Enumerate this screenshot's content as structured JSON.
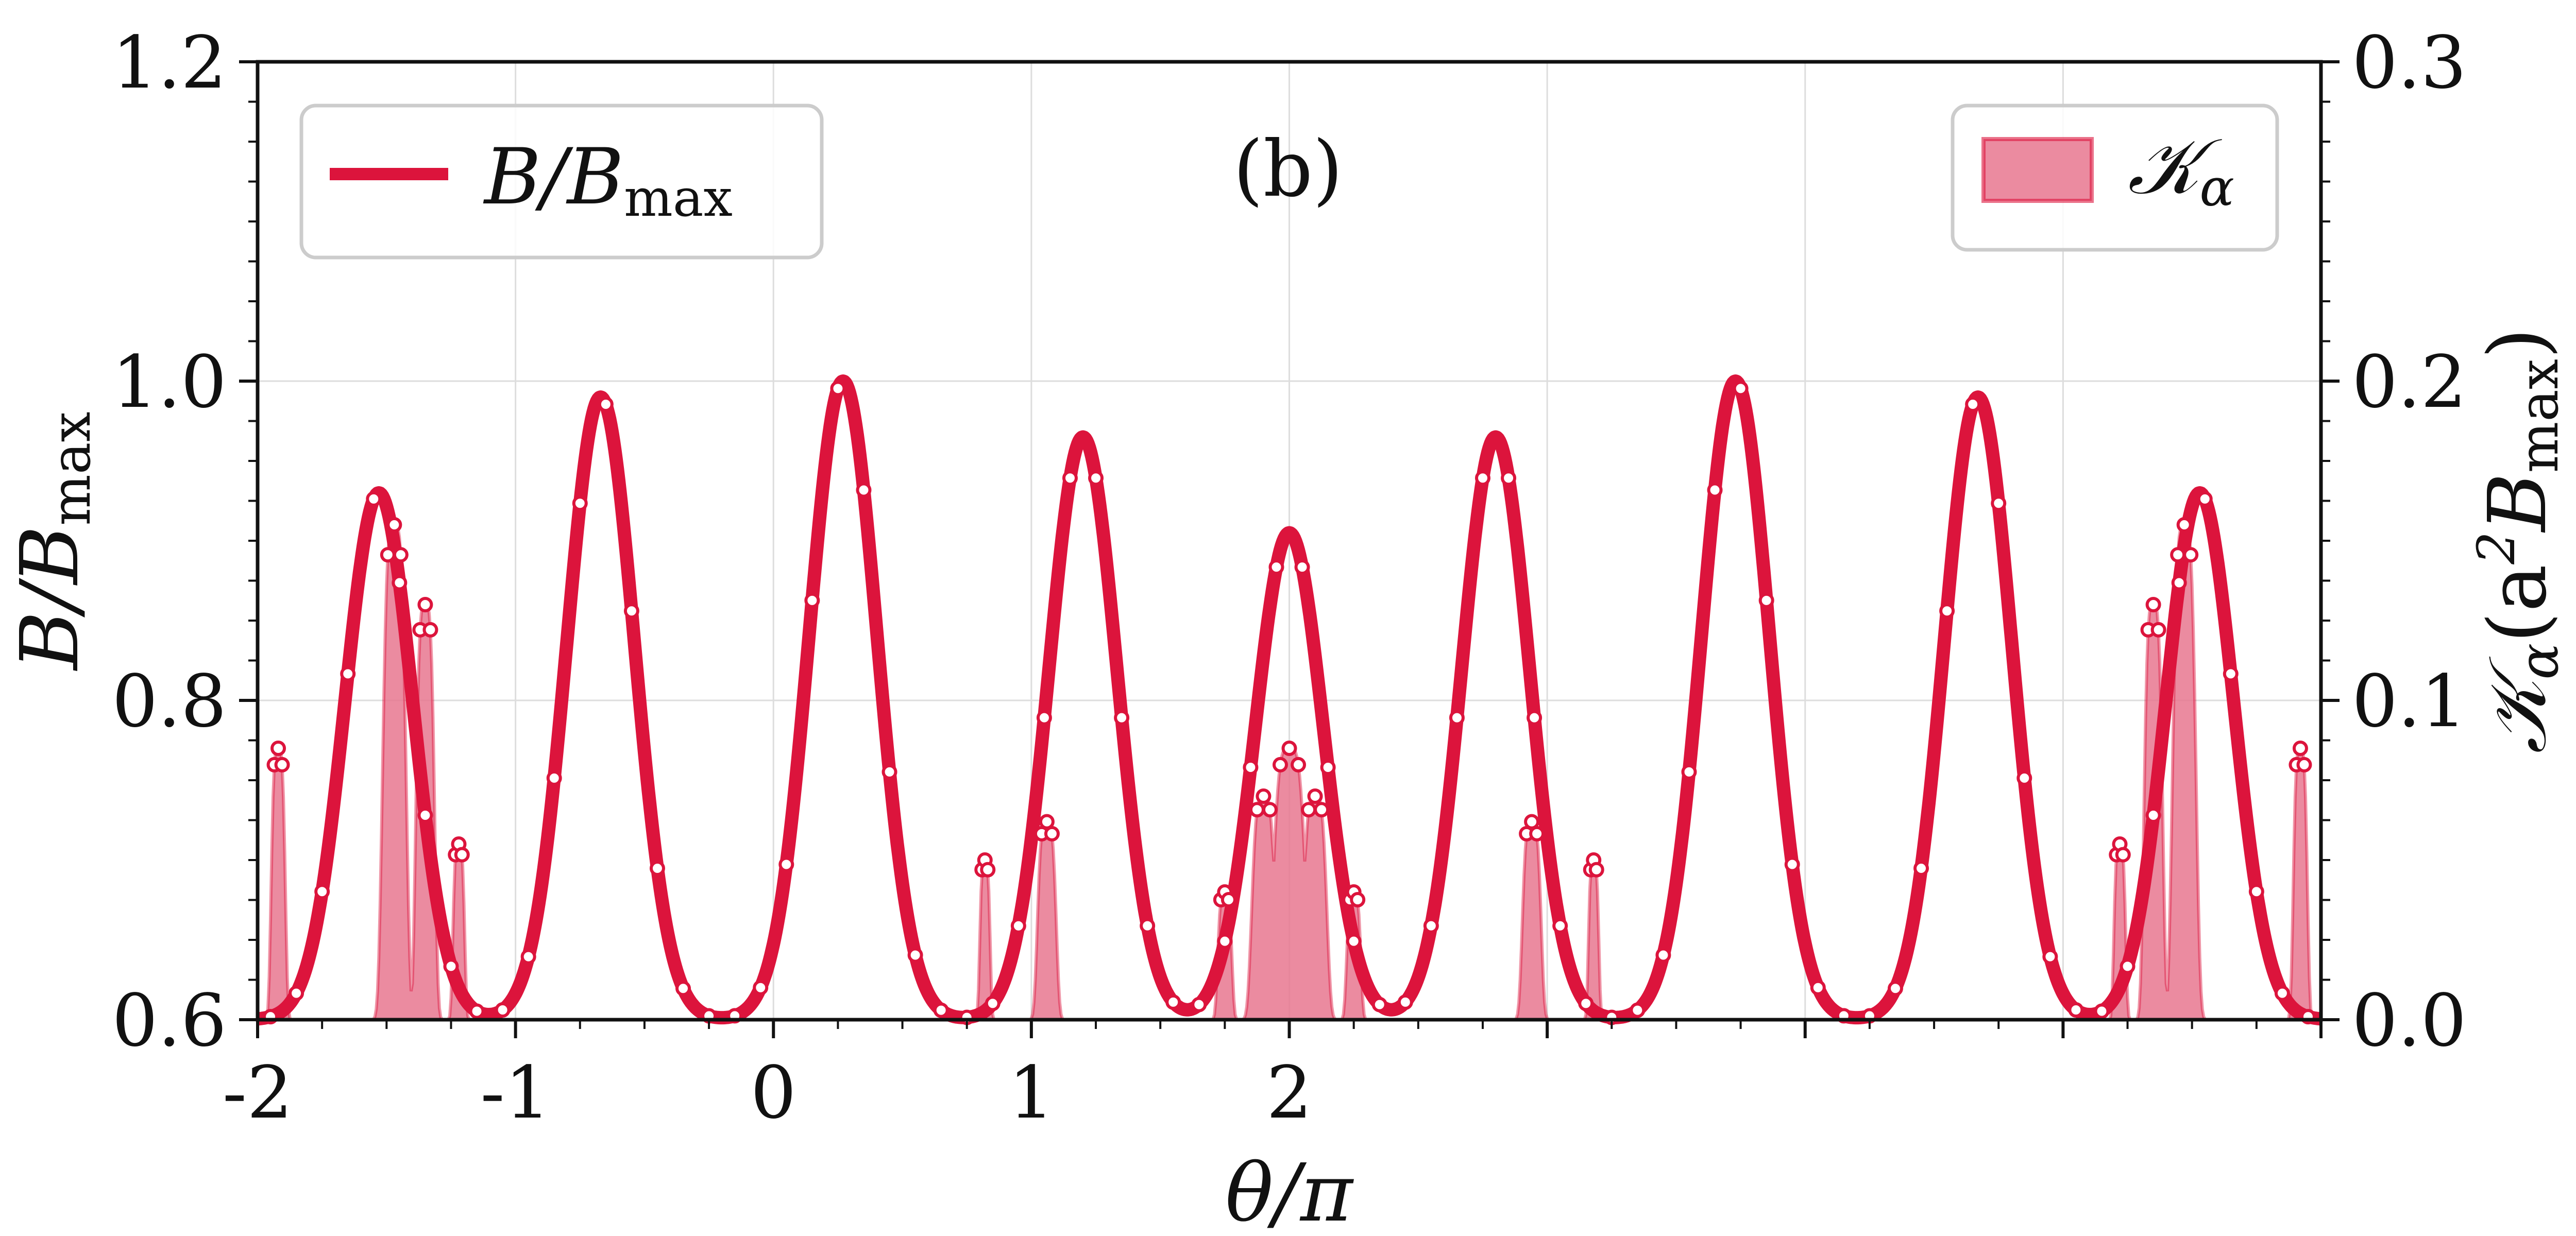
{
  "chart_data": {
    "type": "line",
    "panel_label": "(b)",
    "xlabel": "θ/π",
    "ylabel_left": {
      "main": "B/B",
      "sub": "max"
    },
    "ylabel_right": {
      "main": "𝒦",
      "sub": "α",
      "rest": "(a",
      "sup": "2",
      "main2": "B",
      "sub2": "max",
      "close": ")"
    },
    "x_range": [
      -2,
      6
    ],
    "y_left_range": [
      0.6,
      1.2
    ],
    "y_right_range": [
      0.0,
      0.3
    ],
    "x_ticks": [
      -2,
      -1,
      0,
      1,
      2
    ],
    "x_tick_labels": [
      "-2",
      "-1",
      "0",
      "1",
      "2"
    ],
    "x_unlabeled_ticks": [
      3,
      4,
      5,
      6
    ],
    "y_left_ticks": [
      0.6,
      0.8,
      1.0,
      1.2
    ],
    "y_left_tick_labels": [
      "0.6",
      "0.8",
      "1.0",
      "1.2"
    ],
    "y_right_ticks": [
      0.0,
      0.1,
      0.2,
      0.3
    ],
    "y_right_tick_labels": [
      "0.0",
      "0.1",
      "0.2",
      "0.3"
    ],
    "grid": true,
    "series": [
      {
        "name": "B/B_max",
        "legend_main": "B/B",
        "legend_sub": "max",
        "color": "#dc143c",
        "axis": "left",
        "style": "line with white markers",
        "peaks": [
          {
            "x": -1.53,
            "y": 0.93
          },
          {
            "x": -0.67,
            "y": 0.99
          },
          {
            "x": 0.27,
            "y": 1.0
          },
          {
            "x": 1.2,
            "y": 0.965
          },
          {
            "x": 2.0,
            "y": 0.905
          },
          {
            "x": 2.8,
            "y": 0.965
          },
          {
            "x": 3.73,
            "y": 1.0
          },
          {
            "x": 4.67,
            "y": 0.99
          },
          {
            "x": 5.53,
            "y": 0.93
          }
        ],
        "baseline": 0.6,
        "peak_width": 0.185
      },
      {
        "name": "K_alpha",
        "legend_main": "𝒦",
        "legend_sub": "α",
        "color": "#e8778f",
        "edge_color": "#dc143c",
        "axis": "right",
        "style": "filled area with markers",
        "bumps": [
          {
            "x": -1.92,
            "h": 0.085,
            "w": 0.03
          },
          {
            "x": -1.47,
            "h": 0.155,
            "w": 0.05
          },
          {
            "x": -1.35,
            "h": 0.13,
            "w": 0.04
          },
          {
            "x": -1.22,
            "h": 0.055,
            "w": 0.025
          },
          {
            "x": 0.82,
            "h": 0.05,
            "w": 0.022
          },
          {
            "x": 1.06,
            "h": 0.062,
            "w": 0.04
          },
          {
            "x": 1.75,
            "h": 0.04,
            "w": 0.03
          },
          {
            "x": 1.9,
            "h": 0.07,
            "w": 0.05
          },
          {
            "x": 2.0,
            "h": 0.085,
            "w": 0.07
          },
          {
            "x": 2.1,
            "h": 0.07,
            "w": 0.05
          },
          {
            "x": 2.25,
            "h": 0.04,
            "w": 0.03
          },
          {
            "x": 2.94,
            "h": 0.062,
            "w": 0.04
          },
          {
            "x": 3.18,
            "h": 0.05,
            "w": 0.022
          },
          {
            "x": 5.22,
            "h": 0.055,
            "w": 0.025
          },
          {
            "x": 5.35,
            "h": 0.13,
            "w": 0.04
          },
          {
            "x": 5.47,
            "h": 0.155,
            "w": 0.05
          },
          {
            "x": 5.92,
            "h": 0.085,
            "w": 0.03
          }
        ]
      }
    ]
  },
  "colors": {
    "accent": "#dc143c",
    "fill": "#e8778f",
    "grid": "#dddddd",
    "axes": "#111111"
  }
}
